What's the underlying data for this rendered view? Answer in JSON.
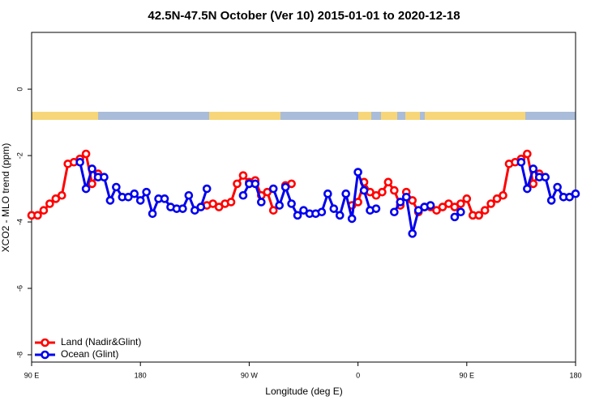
{
  "chart_data": {
    "type": "line",
    "title": "42.5N-47.5N October (Ver 10)   2015-01-01 to 2020-12-18",
    "x_label": "Longitude (deg E)",
    "y_label": "XCO2 - MLO trend (ppm)",
    "x": [
      90,
      95,
      100,
      105,
      110,
      115,
      120,
      125,
      130,
      135,
      140,
      145,
      150,
      155,
      160,
      165,
      170,
      175,
      180,
      185,
      190,
      195,
      200,
      205,
      210,
      215,
      220,
      225,
      230,
      235,
      240,
      245,
      250,
      255,
      260,
      265,
      270,
      275,
      280,
      285,
      290,
      295,
      300,
      305,
      310,
      315,
      320,
      325,
      330,
      335,
      340,
      345,
      350,
      355,
      360,
      365,
      370,
      375,
      380,
      385,
      390,
      395,
      400,
      405,
      410,
      415,
      420,
      425,
      430,
      435,
      440,
      445,
      450,
      455,
      460,
      465,
      470,
      475,
      480,
      485,
      490,
      495,
      500,
      505,
      510,
      515,
      520,
      525,
      530,
      535,
      540
    ],
    "xlim": [
      90,
      540
    ],
    "xticks": [
      {
        "value": 90,
        "label": "90 E"
      },
      180,
      {
        "value": 270,
        "label": "90 W"
      },
      {
        "value": 360,
        "label": "0"
      },
      {
        "value": 450,
        "label": "90 E"
      },
      {
        "value": 540,
        "label": "180"
      }
    ],
    "ylim": [
      -8.22,
      1.71
    ],
    "yticks": [
      0,
      -2,
      -4,
      -6,
      -8
    ],
    "legend": "bottom-left",
    "series": [
      {
        "name": "Land (Nadir&Glint)",
        "color": "#ff0000",
        "values": [
          -3.8,
          -3.8,
          -3.65,
          -3.45,
          -3.3,
          -3.2,
          -2.25,
          -2.2,
          -2.1,
          -1.95,
          -2.85,
          -2.55,
          null,
          null,
          null,
          null,
          null,
          null,
          null,
          null,
          null,
          null,
          null,
          null,
          null,
          null,
          null,
          null,
          null,
          -3.5,
          -3.45,
          -3.55,
          -3.45,
          -3.4,
          -2.85,
          -2.6,
          -2.8,
          -2.75,
          -3.2,
          -3.1,
          -3.65,
          null,
          -2.9,
          -2.85,
          null,
          null,
          null,
          null,
          null,
          null,
          null,
          null,
          null,
          -3.5,
          -3.4,
          -2.8,
          -3.1,
          -3.2,
          -3.1,
          -2.8,
          -3.05,
          -3.5,
          -3.1,
          -3.35,
          -3.7,
          -3.55,
          -3.55,
          -3.65,
          -3.55,
          -3.45,
          -3.55,
          -3.45,
          -3.3,
          -3.8,
          -3.8,
          -3.65,
          -3.45,
          -3.3,
          -3.2,
          -2.25,
          -2.2,
          -2.1,
          -1.95,
          -2.85,
          -2.55,
          null,
          null,
          null,
          null,
          null,
          null
        ]
      },
      {
        "name": "Ocean (Glint)",
        "color": "#0000ee",
        "values": [
          null,
          null,
          null,
          null,
          null,
          null,
          null,
          null,
          -2.2,
          -3.0,
          -2.4,
          -2.65,
          -2.65,
          -3.35,
          -2.95,
          -3.25,
          -3.25,
          -3.15,
          -3.35,
          -3.1,
          -3.75,
          -3.3,
          -3.3,
          -3.55,
          -3.6,
          -3.6,
          -3.2,
          -3.65,
          -3.55,
          -3.0,
          null,
          null,
          null,
          null,
          null,
          -3.2,
          -2.85,
          -2.85,
          -3.4,
          null,
          -3.0,
          -3.5,
          -2.95,
          -3.45,
          -3.8,
          -3.65,
          -3.75,
          -3.75,
          -3.7,
          -3.15,
          -3.6,
          -3.8,
          -3.15,
          -3.9,
          -2.5,
          -3.05,
          -3.65,
          -3.6,
          null,
          null,
          -3.7,
          -3.4,
          -3.25,
          -4.35,
          -3.65,
          -3.55,
          -3.5,
          null,
          null,
          null,
          -3.85,
          -3.7,
          null,
          null,
          null,
          null,
          null,
          null,
          null,
          null,
          null,
          -2.2,
          -3.0,
          -2.4,
          -2.65,
          -2.65,
          -3.35,
          -2.95,
          -3.25,
          -3.25,
          -3.15
        ]
      }
    ]
  }
}
